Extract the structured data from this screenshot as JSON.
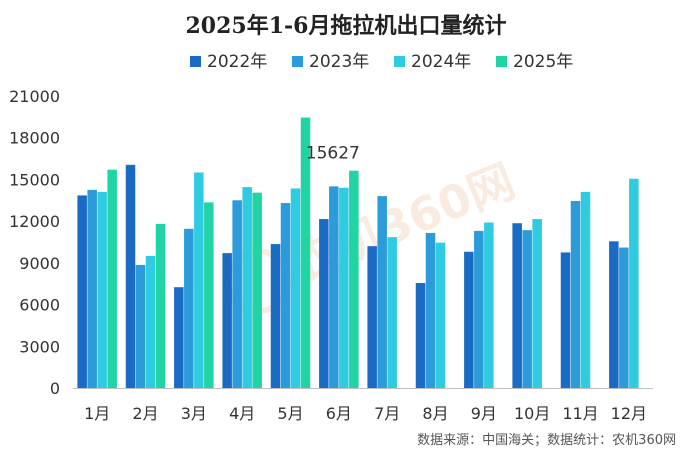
{
  "chart_data": {
    "type": "bar",
    "title": "2025年1-6月拖拉机出口量统计",
    "categories": [
      "1月",
      "2月",
      "3月",
      "4月",
      "5月",
      "6月",
      "7月",
      "8月",
      "9月",
      "10月",
      "11月",
      "12月"
    ],
    "series": [
      {
        "name": "2022年",
        "color": "#1a6bc4",
        "values": [
          13850,
          16050,
          7250,
          9700,
          10350,
          12150,
          10200,
          7550,
          9800,
          11850,
          9750,
          10550
        ]
      },
      {
        "name": "2023年",
        "color": "#2b9bd9",
        "values": [
          14250,
          8850,
          11450,
          13500,
          13300,
          14500,
          13800,
          11150,
          11300,
          11350,
          13450,
          10100
        ]
      },
      {
        "name": "2024年",
        "color": "#2fcbe0",
        "values": [
          14100,
          9500,
          15500,
          14450,
          14350,
          14400,
          10850,
          10450,
          11900,
          12150,
          14100,
          15050
        ]
      },
      {
        "name": "2025年",
        "color": "#20d4a4",
        "values": [
          15700,
          11800,
          13350,
          14050,
          19450,
          15627,
          null,
          null,
          null,
          null,
          null,
          null
        ]
      }
    ],
    "ylim": [
      0,
      21000
    ],
    "yticks": [
      0,
      3000,
      6000,
      9000,
      12000,
      15000,
      18000,
      21000
    ],
    "ytick_labels": [
      "0",
      "3000",
      "6000",
      "9000",
      "12000",
      "15000",
      "18000",
      "21000"
    ],
    "annotation": {
      "text": "15627",
      "category": "6月",
      "series": "2025年"
    },
    "legend_position": "top-center",
    "grid": false
  },
  "source_text": "数据来源：中国海关；数据统计：农机360网",
  "watermark_text": "农机360网"
}
